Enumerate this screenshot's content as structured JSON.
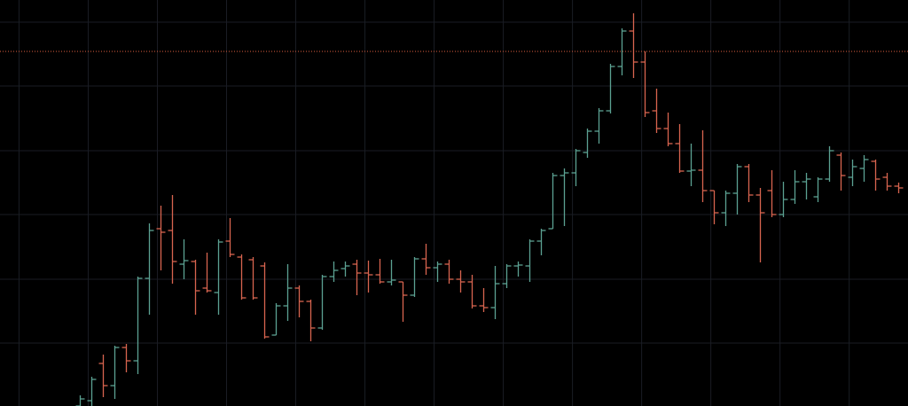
{
  "chart_data": {
    "type": "ohlc",
    "open": [
      0,
      6,
      48,
      23,
      66,
      51,
      144,
      200,
      198,
      160,
      163,
      133,
      128,
      186,
      168,
      165,
      158,
      80,
      113,
      133,
      118,
      88,
      146,
      155,
      160,
      150,
      148,
      140,
      140,
      125,
      166,
      156,
      160,
      143,
      140,
      113,
      111,
      138,
      158,
      158,
      186,
      200,
      260,
      263,
      286,
      310,
      333,
      383,
      423,
      388,
      333,
      313,
      296,
      265,
      266,
      243,
      218,
      240,
      270,
      238,
      243,
      216,
      233,
      253,
      236,
      256,
      283,
      258,
      268,
      276,
      258,
      248
    ],
    "high": [
      12,
      33,
      58,
      68,
      70,
      146,
      206,
      226,
      238,
      188,
      165,
      173,
      188,
      212,
      171,
      168,
      162,
      116,
      160,
      136,
      120,
      148,
      163,
      163,
      165,
      164,
      166,
      165,
      140,
      168,
      183,
      163,
      165,
      153,
      148,
      133,
      158,
      160,
      163,
      188,
      200,
      263,
      268,
      290,
      313,
      336,
      386,
      426,
      443,
      400,
      358,
      331,
      318,
      296,
      311,
      243,
      243,
      273,
      273,
      246,
      266,
      253,
      266,
      263,
      258,
      293,
      286,
      278,
      283,
      278,
      263,
      252
    ],
    "low": [
      0,
      0,
      10,
      8,
      38,
      36,
      103,
      153,
      138,
      143,
      103,
      128,
      103,
      168,
      120,
      120,
      76,
      80,
      96,
      100,
      73,
      86,
      140,
      146,
      125,
      128,
      138,
      136,
      95,
      123,
      148,
      140,
      138,
      128,
      110,
      106,
      98,
      133,
      146,
      140,
      170,
      200,
      203,
      248,
      280,
      296,
      330,
      373,
      370,
      326,
      308,
      293,
      263,
      248,
      230,
      205,
      203,
      216,
      230,
      162,
      213,
      213,
      228,
      233,
      230,
      253,
      243,
      248,
      253,
      243,
      243,
      240
    ],
    "close": [
      8,
      30,
      23,
      66,
      51,
      144,
      198,
      196,
      163,
      164,
      130,
      130,
      185,
      171,
      122,
      122,
      78,
      113,
      133,
      118,
      88,
      146,
      153,
      158,
      150,
      148,
      140,
      142,
      125,
      166,
      156,
      160,
      143,
      140,
      113,
      111,
      138,
      158,
      159,
      186,
      198,
      260,
      263,
      288,
      310,
      333,
      383,
      423,
      388,
      331,
      313,
      296,
      265,
      266,
      243,
      218,
      240,
      270,
      238,
      218,
      216,
      233,
      253,
      256,
      256,
      288,
      260,
      270,
      278,
      256,
      248,
      246
    ],
    "up_color": "#5ba192",
    "down_color": "#d8644f",
    "xlim": [
      -6.9,
      71.85
    ],
    "xticks": [
      -5.25,
      0.75,
      6.75,
      12.75,
      18.75,
      24.75,
      30.75,
      36.75,
      42.75,
      48.75,
      54.75,
      60.75,
      66.75
    ],
    "ylim": [
      0,
      458
    ],
    "yticks": [
      71,
      143,
      216,
      288,
      361,
      433
    ],
    "grid": true,
    "price_line": {
      "value": 400,
      "color": "#e0603f"
    }
  }
}
